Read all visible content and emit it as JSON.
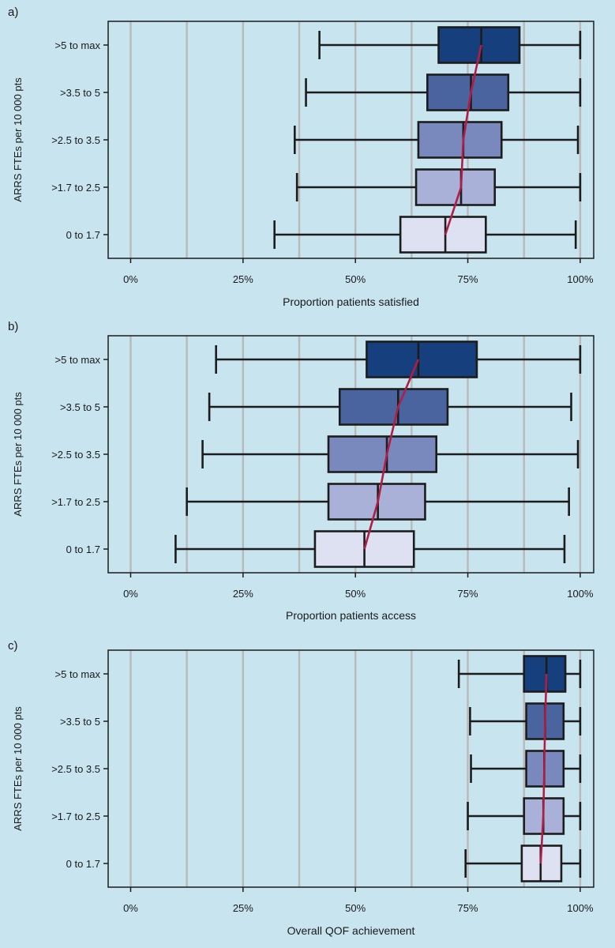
{
  "chart_data": [
    {
      "type": "box",
      "panel_label": "a)",
      "ylabel": "ARRS FTEs per 10 000 pts",
      "xlabel": "Proportion patients satisfied",
      "xlim": [
        -0.05,
        1.03
      ],
      "xticks": [
        0,
        0.25,
        0.5,
        0.75,
        1.0
      ],
      "xtick_labels": [
        "0%",
        "25%",
        "50%",
        "75%",
        "100%"
      ],
      "grid": true,
      "categories": [
        ">5 to max",
        ">3.5 to 5",
        ">2.5 to 3.5",
        ">1.7 to 2.5",
        "0 to 1.7"
      ],
      "whisker_low": [
        0.42,
        0.39,
        0.365,
        0.37,
        0.32
      ],
      "q1": [
        0.685,
        0.66,
        0.64,
        0.635,
        0.6
      ],
      "median": [
        0.78,
        0.757,
        0.74,
        0.735,
        0.7
      ],
      "q3": [
        0.865,
        0.84,
        0.825,
        0.81,
        0.79
      ],
      "whisker_high": [
        1.0,
        1.0,
        0.995,
        1.0,
        0.99
      ],
      "trend_line": [
        0.78,
        0.757,
        0.74,
        0.735,
        0.7
      ],
      "colors": [
        "#163f7d",
        "#4a64a0",
        "#7a89bd",
        "#a9b1d8",
        "#dde1f2"
      ],
      "trend_color": "#b01e45"
    },
    {
      "type": "box",
      "panel_label": "b)",
      "ylabel": "ARRS FTEs per 10 000 pts",
      "xlabel": "Proportion patients access",
      "xlim": [
        -0.05,
        1.03
      ],
      "xticks": [
        0,
        0.25,
        0.5,
        0.75,
        1.0
      ],
      "xtick_labels": [
        "0%",
        "25%",
        "50%",
        "75%",
        "100%"
      ],
      "grid": true,
      "categories": [
        ">5 to max",
        ">3.5 to 5",
        ">2.5 to 3.5",
        ">1.7 to 2.5",
        "0 to 1.7"
      ],
      "whisker_low": [
        0.19,
        0.175,
        0.16,
        0.125,
        0.1
      ],
      "q1": [
        0.525,
        0.465,
        0.44,
        0.44,
        0.41
      ],
      "median": [
        0.64,
        0.595,
        0.57,
        0.55,
        0.52
      ],
      "q3": [
        0.77,
        0.705,
        0.68,
        0.655,
        0.63
      ],
      "whisker_high": [
        1.0,
        0.98,
        0.995,
        0.975,
        0.965
      ],
      "trend_line": [
        0.64,
        0.595,
        0.57,
        0.55,
        0.52
      ],
      "colors": [
        "#163f7d",
        "#4a64a0",
        "#7a89bd",
        "#a9b1d8",
        "#dde1f2"
      ],
      "trend_color": "#b01e45"
    },
    {
      "type": "box",
      "panel_label": "c)",
      "ylabel": "ARRS FTEs per 10 000 pts",
      "xlabel": "Overall QOF achievement",
      "xlim": [
        -0.05,
        1.03
      ],
      "xticks": [
        0,
        0.25,
        0.5,
        0.75,
        1.0
      ],
      "xtick_labels": [
        "0%",
        "25%",
        "50%",
        "75%",
        "100%"
      ],
      "grid": true,
      "categories": [
        ">5 to max",
        ">3.5 to 5",
        ">2.5 to 3.5",
        ">1.7 to 2.5",
        "0 to 1.7"
      ],
      "whisker_low": [
        0.73,
        0.755,
        0.757,
        0.75,
        0.745
      ],
      "q1": [
        0.875,
        0.88,
        0.88,
        0.875,
        0.87
      ],
      "median": [
        0.925,
        0.922,
        0.92,
        0.918,
        0.912
      ],
      "q3": [
        0.967,
        0.963,
        0.963,
        0.963,
        0.958
      ],
      "whisker_high": [
        1.0,
        1.0,
        1.0,
        1.0,
        1.0
      ],
      "trend_line": [
        0.925,
        0.922,
        0.92,
        0.918,
        0.912
      ],
      "colors": [
        "#163f7d",
        "#4a64a0",
        "#7a89bd",
        "#a9b1d8",
        "#dde1f2"
      ],
      "trend_color": "#b01e45"
    }
  ]
}
